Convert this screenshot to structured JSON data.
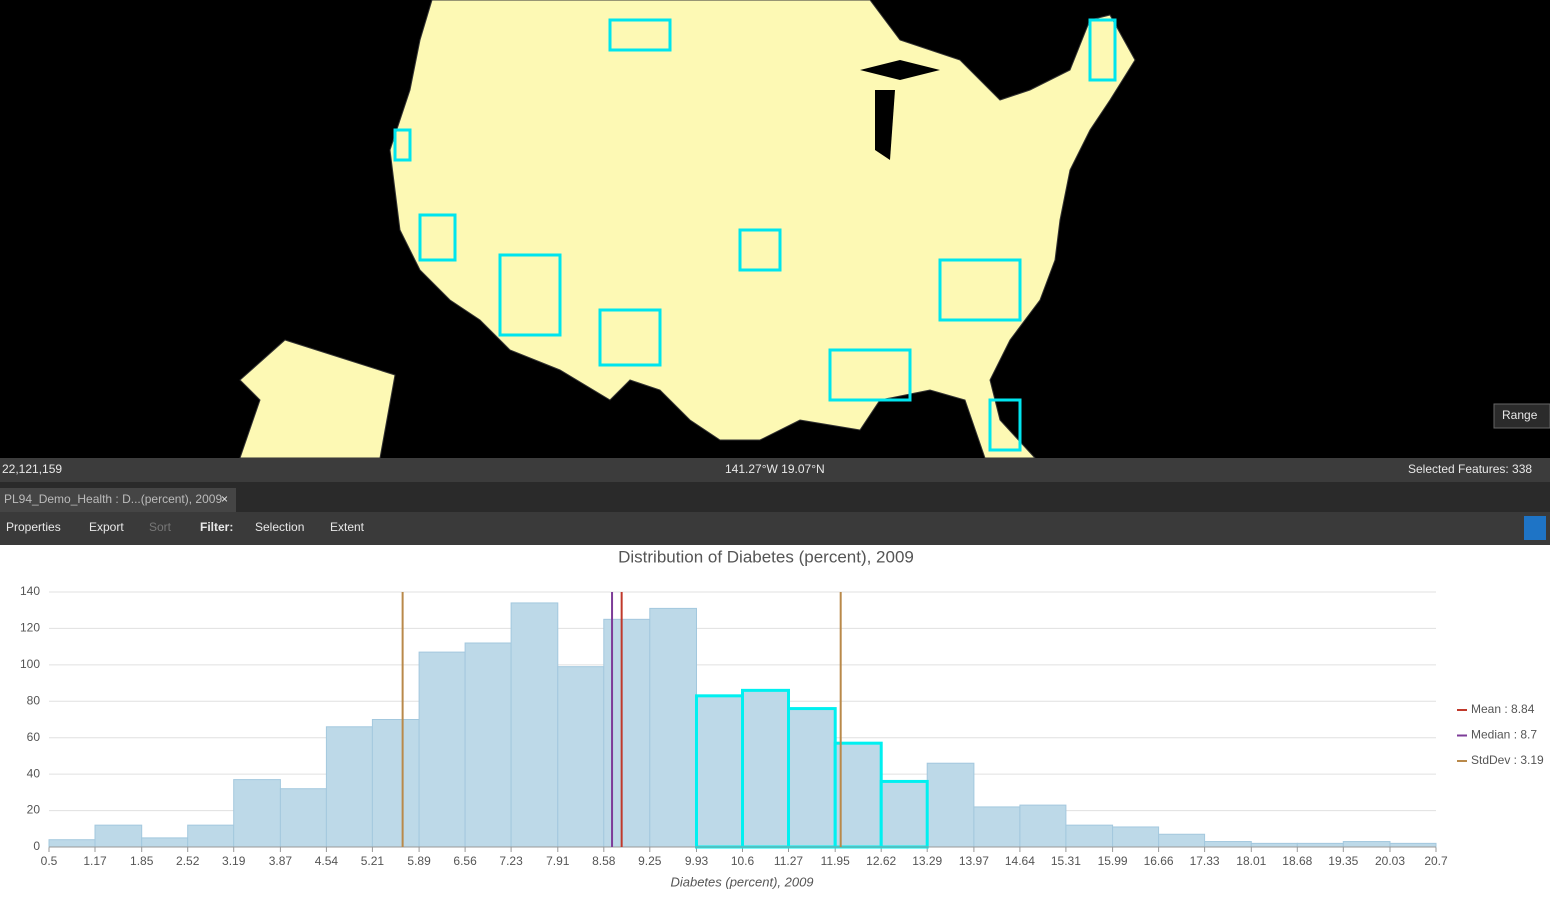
{
  "ui": {
    "scale": "22,121,159",
    "coordinates": "141.27°W 19.07°N",
    "selected_features": "Selected Features: 338",
    "range_button": "Range",
    "tab": "PL94_Demo_Health : D...(percent), 2009",
    "toolbar": {
      "properties": "Properties",
      "export": "Export",
      "sort": "Sort",
      "filter": "Filter:",
      "selection": "Selection",
      "extent": "Extent"
    }
  },
  "chart_data": {
    "type": "histogram",
    "title": "Distribution of Diabetes (percent), 2009",
    "x_label": "Diabetes (percent), 2009",
    "bins": [
      0.5,
      1.17,
      1.85,
      2.52,
      3.19,
      3.87,
      4.54,
      5.21,
      5.89,
      6.56,
      7.23,
      7.91,
      8.58,
      9.25,
      9.93,
      10.6,
      11.27,
      11.95,
      12.62,
      13.29,
      13.97,
      14.64,
      15.31,
      15.99,
      16.66,
      17.33,
      18.01,
      18.68,
      19.35,
      20.03,
      20.7
    ],
    "values": [
      4,
      12,
      5,
      12,
      37,
      32,
      66,
      70,
      107,
      112,
      134,
      99,
      125,
      131,
      83,
      86,
      76,
      57,
      36,
      46,
      22,
      23,
      12,
      11,
      7,
      3,
      2,
      2,
      3,
      2
    ],
    "selected": [
      false,
      false,
      false,
      false,
      false,
      false,
      false,
      false,
      false,
      false,
      false,
      false,
      false,
      false,
      true,
      true,
      true,
      true,
      true,
      false,
      false,
      false,
      false,
      false,
      false,
      false,
      false,
      false,
      false,
      false
    ],
    "color": "#bdd9e8",
    "edge_color": "#a3c8de",
    "selected_color": "#00f0f0",
    "xlim": [
      0.5,
      20.7
    ],
    "xticks": [
      0.5,
      1.17,
      1.85,
      2.52,
      3.19,
      3.87,
      4.54,
      5.21,
      5.89,
      6.56,
      7.23,
      7.91,
      8.58,
      9.25,
      9.93,
      10.6,
      11.27,
      11.95,
      12.62,
      13.29,
      13.97,
      14.64,
      15.31,
      15.99,
      16.66,
      17.33,
      18.01,
      18.68,
      19.35,
      20.03,
      20.7
    ],
    "ylim": [
      0,
      140
    ],
    "yticks": [
      0,
      20,
      40,
      60,
      80,
      100,
      120,
      140
    ],
    "grid": true,
    "reference_lines": [
      {
        "name": "Mean",
        "value": 8.84,
        "color": "#c0392b",
        "label": "Mean : 8.84"
      },
      {
        "name": "Median",
        "value": 8.7,
        "color": "#7d3c98",
        "label": "Median : 8.7"
      },
      {
        "name": "StdDev",
        "value": 3.19,
        "color": "#b9894a",
        "label": "StdDev : 3.19"
      }
    ]
  }
}
